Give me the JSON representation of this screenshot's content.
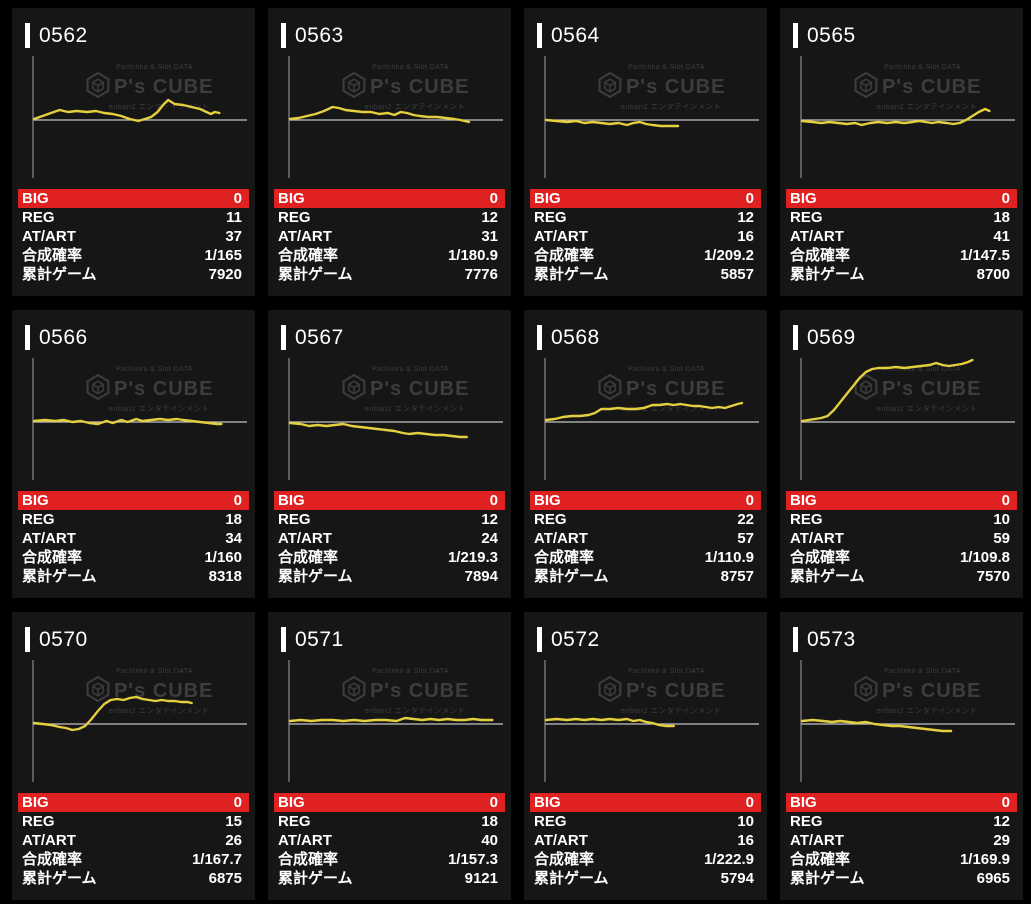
{
  "labels": {
    "big": "BIG",
    "reg": "REG",
    "at_art": "AT/ART",
    "rate": "合成確率",
    "games": "累計ゲーム"
  },
  "watermark": {
    "top": "Pachinko & Slot DATA",
    "brand": "P's CUBE",
    "bottom": "enban2 エンタテインメント"
  },
  "colors": {
    "line": "#e5cf3e",
    "big_row_bg": "#e02121",
    "panel_bg": "#161616",
    "page_bg": "#000000",
    "axis": "#8a8a8a"
  },
  "machines": [
    {
      "id": "0562",
      "big": "0",
      "reg": "11",
      "at_art": "37",
      "rate": "1/165",
      "games": "7920",
      "spark": [
        [
          0,
          1
        ],
        [
          4,
          4
        ],
        [
          8,
          7
        ],
        [
          12,
          10
        ],
        [
          16,
          8
        ],
        [
          20,
          9
        ],
        [
          25,
          8
        ],
        [
          29,
          9
        ],
        [
          33,
          7
        ],
        [
          37,
          6
        ],
        [
          41,
          4
        ],
        [
          45,
          1
        ],
        [
          49,
          -1
        ],
        [
          52,
          1
        ],
        [
          55,
          3
        ],
        [
          58,
          8
        ],
        [
          61,
          16
        ],
        [
          63,
          20
        ],
        [
          66,
          16
        ],
        [
          70,
          15
        ],
        [
          74,
          13
        ],
        [
          78,
          11
        ],
        [
          81,
          8
        ],
        [
          83,
          6
        ],
        [
          85,
          8
        ],
        [
          87,
          7
        ]
      ]
    },
    {
      "id": "0563",
      "big": "0",
      "reg": "12",
      "at_art": "31",
      "rate": "1/180.9",
      "games": "7776",
      "spark": [
        [
          0,
          1
        ],
        [
          4,
          2
        ],
        [
          8,
          4
        ],
        [
          12,
          6
        ],
        [
          16,
          9
        ],
        [
          20,
          13
        ],
        [
          23,
          12
        ],
        [
          26,
          10
        ],
        [
          30,
          9
        ],
        [
          34,
          8
        ],
        [
          38,
          8
        ],
        [
          42,
          6
        ],
        [
          46,
          7
        ],
        [
          49,
          5
        ],
        [
          52,
          8
        ],
        [
          55,
          7
        ],
        [
          58,
          5
        ],
        [
          61,
          4
        ],
        [
          65,
          3
        ],
        [
          69,
          3
        ],
        [
          73,
          2
        ],
        [
          77,
          1
        ],
        [
          80,
          0
        ],
        [
          84,
          -2
        ]
      ]
    },
    {
      "id": "0564",
      "big": "0",
      "reg": "12",
      "at_art": "16",
      "rate": "1/209.2",
      "games": "5857",
      "spark": [
        [
          0,
          0
        ],
        [
          5,
          -1
        ],
        [
          10,
          -2
        ],
        [
          14,
          -1
        ],
        [
          18,
          -3
        ],
        [
          22,
          -2
        ],
        [
          26,
          -3
        ],
        [
          30,
          -4
        ],
        [
          34,
          -3
        ],
        [
          38,
          -5
        ],
        [
          41,
          -3
        ],
        [
          44,
          -2
        ],
        [
          47,
          -4
        ],
        [
          50,
          -5
        ],
        [
          54,
          -6
        ],
        [
          58,
          -6
        ],
        [
          62,
          -6
        ]
      ]
    },
    {
      "id": "0565",
      "big": "0",
      "reg": "18",
      "at_art": "41",
      "rate": "1/147.5",
      "games": "8700",
      "spark": [
        [
          0,
          -1
        ],
        [
          5,
          -2
        ],
        [
          9,
          -3
        ],
        [
          13,
          -2
        ],
        [
          17,
          -3
        ],
        [
          21,
          -4
        ],
        [
          25,
          -3
        ],
        [
          28,
          -5
        ],
        [
          32,
          -3
        ],
        [
          36,
          -2
        ],
        [
          40,
          -3
        ],
        [
          44,
          -2
        ],
        [
          48,
          -3
        ],
        [
          52,
          -2
        ],
        [
          55,
          -1
        ],
        [
          58,
          -2
        ],
        [
          61,
          -3
        ],
        [
          64,
          -2
        ],
        [
          68,
          -3
        ],
        [
          71,
          -4
        ],
        [
          74,
          -3
        ],
        [
          77,
          0
        ],
        [
          80,
          4
        ],
        [
          83,
          8
        ],
        [
          86,
          11
        ],
        [
          88,
          9
        ]
      ]
    },
    {
      "id": "0566",
      "big": "0",
      "reg": "18",
      "at_art": "34",
      "rate": "1/160",
      "games": "8318",
      "spark": [
        [
          0,
          1
        ],
        [
          5,
          2
        ],
        [
          10,
          1
        ],
        [
          14,
          2
        ],
        [
          18,
          0
        ],
        [
          22,
          1
        ],
        [
          26,
          -1
        ],
        [
          30,
          -2
        ],
        [
          34,
          1
        ],
        [
          37,
          -1
        ],
        [
          41,
          2
        ],
        [
          44,
          0
        ],
        [
          48,
          3
        ],
        [
          51,
          1
        ],
        [
          55,
          2
        ],
        [
          59,
          3
        ],
        [
          63,
          2
        ],
        [
          67,
          3
        ],
        [
          70,
          2
        ],
        [
          74,
          1
        ],
        [
          78,
          0
        ],
        [
          82,
          -1
        ],
        [
          86,
          -2
        ],
        [
          88,
          -2
        ]
      ]
    },
    {
      "id": "0567",
      "big": "0",
      "reg": "12",
      "at_art": "24",
      "rate": "1/219.3",
      "games": "7894",
      "spark": [
        [
          0,
          -1
        ],
        [
          5,
          -2
        ],
        [
          9,
          -4
        ],
        [
          13,
          -3
        ],
        [
          17,
          -4
        ],
        [
          21,
          -3
        ],
        [
          25,
          -2
        ],
        [
          29,
          -4
        ],
        [
          33,
          -5
        ],
        [
          37,
          -6
        ],
        [
          41,
          -7
        ],
        [
          45,
          -8
        ],
        [
          49,
          -9
        ],
        [
          53,
          -11
        ],
        [
          56,
          -12
        ],
        [
          60,
          -11
        ],
        [
          64,
          -12
        ],
        [
          68,
          -13
        ],
        [
          72,
          -13
        ],
        [
          76,
          -14
        ],
        [
          80,
          -15
        ],
        [
          83,
          -15
        ]
      ]
    },
    {
      "id": "0568",
      "big": "0",
      "reg": "22",
      "at_art": "57",
      "rate": "1/110.9",
      "games": "8757",
      "spark": [
        [
          0,
          2
        ],
        [
          4,
          3
        ],
        [
          8,
          5
        ],
        [
          12,
          6
        ],
        [
          16,
          6
        ],
        [
          20,
          7
        ],
        [
          23,
          9
        ],
        [
          26,
          13
        ],
        [
          30,
          13
        ],
        [
          34,
          14
        ],
        [
          38,
          13
        ],
        [
          42,
          13
        ],
        [
          46,
          14
        ],
        [
          50,
          17
        ],
        [
          53,
          17
        ],
        [
          57,
          18
        ],
        [
          60,
          17
        ],
        [
          63,
          18
        ],
        [
          66,
          17
        ],
        [
          69,
          16
        ],
        [
          72,
          16
        ],
        [
          75,
          15
        ],
        [
          78,
          14
        ],
        [
          81,
          15
        ],
        [
          84,
          14
        ],
        [
          87,
          16
        ],
        [
          90,
          18
        ],
        [
          92,
          19
        ]
      ]
    },
    {
      "id": "0569",
      "big": "0",
      "reg": "10",
      "at_art": "59",
      "rate": "1/109.8",
      "games": "7570",
      "spark": [
        [
          0,
          1
        ],
        [
          3,
          2
        ],
        [
          6,
          3
        ],
        [
          9,
          4
        ],
        [
          12,
          6
        ],
        [
          15,
          12
        ],
        [
          18,
          20
        ],
        [
          21,
          28
        ],
        [
          24,
          36
        ],
        [
          27,
          44
        ],
        [
          30,
          50
        ],
        [
          33,
          53
        ],
        [
          36,
          54
        ],
        [
          40,
          54
        ],
        [
          44,
          55
        ],
        [
          48,
          54
        ],
        [
          52,
          55
        ],
        [
          56,
          56
        ],
        [
          60,
          57
        ],
        [
          63,
          59
        ],
        [
          66,
          57
        ],
        [
          69,
          56
        ],
        [
          72,
          57
        ],
        [
          75,
          58
        ],
        [
          78,
          60
        ],
        [
          80,
          62
        ]
      ]
    },
    {
      "id": "0570",
      "big": "0",
      "reg": "15",
      "at_art": "26",
      "rate": "1/167.7",
      "games": "6875",
      "spark": [
        [
          0,
          1
        ],
        [
          4,
          0
        ],
        [
          8,
          -1
        ],
        [
          12,
          -3
        ],
        [
          15,
          -4
        ],
        [
          18,
          -6
        ],
        [
          21,
          -5
        ],
        [
          24,
          -2
        ],
        [
          27,
          5
        ],
        [
          30,
          13
        ],
        [
          33,
          20
        ],
        [
          36,
          24
        ],
        [
          39,
          25
        ],
        [
          42,
          24
        ],
        [
          45,
          26
        ],
        [
          48,
          27
        ],
        [
          51,
          25
        ],
        [
          54,
          24
        ],
        [
          57,
          23
        ],
        [
          60,
          24
        ],
        [
          63,
          23
        ],
        [
          66,
          23
        ],
        [
          69,
          22
        ],
        [
          72,
          22
        ],
        [
          74,
          21
        ]
      ]
    },
    {
      "id": "0571",
      "big": "0",
      "reg": "18",
      "at_art": "40",
      "rate": "1/157.3",
      "games": "9121",
      "spark": [
        [
          0,
          3
        ],
        [
          5,
          4
        ],
        [
          10,
          3
        ],
        [
          15,
          4
        ],
        [
          20,
          4
        ],
        [
          25,
          3
        ],
        [
          30,
          4
        ],
        [
          35,
          3
        ],
        [
          40,
          4
        ],
        [
          45,
          4
        ],
        [
          50,
          3
        ],
        [
          54,
          6
        ],
        [
          58,
          5
        ],
        [
          62,
          4
        ],
        [
          66,
          5
        ],
        [
          70,
          4
        ],
        [
          74,
          5
        ],
        [
          78,
          4
        ],
        [
          82,
          4
        ],
        [
          86,
          5
        ],
        [
          90,
          4
        ],
        [
          95,
          4
        ]
      ]
    },
    {
      "id": "0572",
      "big": "0",
      "reg": "10",
      "at_art": "16",
      "rate": "1/222.9",
      "games": "5794",
      "spark": [
        [
          0,
          4
        ],
        [
          5,
          5
        ],
        [
          10,
          4
        ],
        [
          14,
          5
        ],
        [
          18,
          4
        ],
        [
          22,
          5
        ],
        [
          26,
          4
        ],
        [
          30,
          5
        ],
        [
          34,
          4
        ],
        [
          38,
          5
        ],
        [
          41,
          3
        ],
        [
          44,
          4
        ],
        [
          47,
          2
        ],
        [
          50,
          1
        ],
        [
          53,
          -1
        ],
        [
          56,
          -2
        ],
        [
          60,
          -2
        ]
      ]
    },
    {
      "id": "0573",
      "big": "0",
      "reg": "12",
      "at_art": "29",
      "rate": "1/169.9",
      "games": "6965",
      "spark": [
        [
          0,
          3
        ],
        [
          5,
          4
        ],
        [
          10,
          3
        ],
        [
          14,
          2
        ],
        [
          18,
          3
        ],
        [
          22,
          2
        ],
        [
          26,
          1
        ],
        [
          30,
          2
        ],
        [
          34,
          0
        ],
        [
          38,
          -1
        ],
        [
          42,
          -2
        ],
        [
          46,
          -2
        ],
        [
          50,
          -3
        ],
        [
          54,
          -4
        ],
        [
          58,
          -5
        ],
        [
          62,
          -6
        ],
        [
          66,
          -7
        ],
        [
          70,
          -7
        ]
      ]
    }
  ]
}
